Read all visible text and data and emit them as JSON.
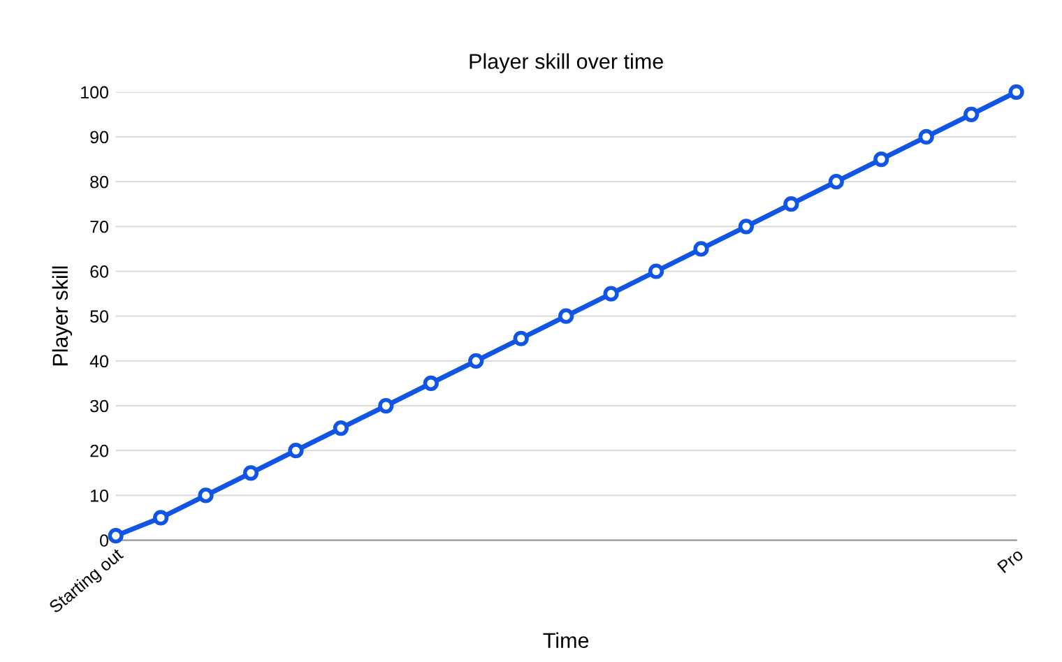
{
  "chart_data": {
    "type": "line",
    "title": "Player skill over time",
    "xlabel": "Time",
    "ylabel": "Player skill",
    "categories": [
      "Starting out",
      null,
      null,
      null,
      null,
      null,
      null,
      null,
      null,
      null,
      null,
      null,
      null,
      null,
      null,
      null,
      null,
      null,
      null,
      null,
      "Pro"
    ],
    "series": [
      {
        "color": "#1155e6",
        "values": [
          1,
          5,
          10,
          15,
          20,
          25,
          30,
          35,
          40,
          45,
          50,
          55,
          60,
          65,
          70,
          75,
          80,
          85,
          90,
          95,
          100
        ]
      }
    ],
    "ylim": [
      0,
      100
    ],
    "yticks": [
      0,
      10,
      20,
      30,
      40,
      50,
      60,
      70,
      80,
      90,
      100
    ],
    "grid": "y",
    "legend": false,
    "marker": "circle",
    "line_style": "solid"
  }
}
